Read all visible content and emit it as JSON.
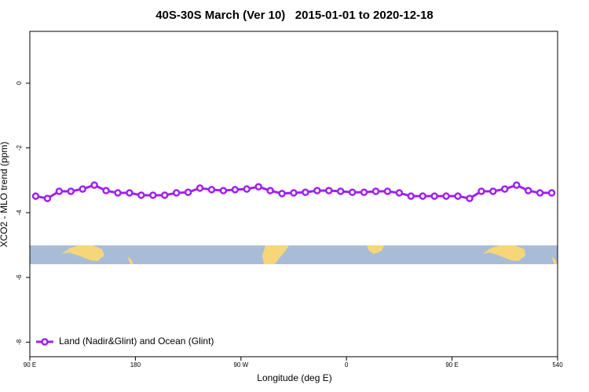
{
  "chart_data": {
    "type": "line",
    "title": "40S-30S March (Ver 10)   2015-01-01 to 2020-12-18",
    "x_label": "Longitude (deg E)",
    "y_label": "XCO2 - MLO trend (ppm)",
    "x": [
      95,
      105,
      115,
      125,
      135,
      145,
      155,
      165,
      175,
      185,
      195,
      205,
      215,
      225,
      235,
      245,
      255,
      265,
      275,
      285,
      295,
      305,
      315,
      325,
      335,
      345,
      355,
      365,
      375,
      385,
      395,
      405,
      415,
      425,
      435,
      445,
      455,
      465,
      475,
      485,
      495,
      505,
      515,
      525,
      535
    ],
    "series": [
      {
        "name": "Land (Nadir&Glint) and Ocean (Glint)",
        "color": "#a020f0",
        "values": [
          -3.49,
          -3.56,
          -3.34,
          -3.34,
          -3.27,
          -3.15,
          -3.32,
          -3.39,
          -3.39,
          -3.46,
          -3.46,
          -3.46,
          -3.39,
          -3.37,
          -3.24,
          -3.29,
          -3.32,
          -3.29,
          -3.27,
          -3.2,
          -3.32,
          -3.41,
          -3.39,
          -3.37,
          -3.32,
          -3.32,
          -3.34,
          -3.37,
          -3.37,
          -3.34,
          -3.34,
          -3.39,
          -3.49,
          -3.49,
          -3.49,
          -3.49,
          -3.49,
          -3.56,
          -3.34,
          -3.34,
          -3.27,
          -3.15,
          -3.32,
          -3.39,
          -3.39
        ]
      }
    ],
    "xlim": [
      90,
      540
    ],
    "xticks": [
      {
        "value": 90,
        "label": "90 E"
      },
      180,
      {
        "value": 270,
        "label": "90 W"
      },
      {
        "value": 360,
        "label": "0"
      },
      {
        "value": 450,
        "label": "90 E"
      },
      540
    ],
    "ylim": [
      -8.45,
      1.6
    ],
    "yticks": [
      -8,
      -6,
      -4,
      -2,
      0
    ],
    "legend": "bottomleft"
  }
}
